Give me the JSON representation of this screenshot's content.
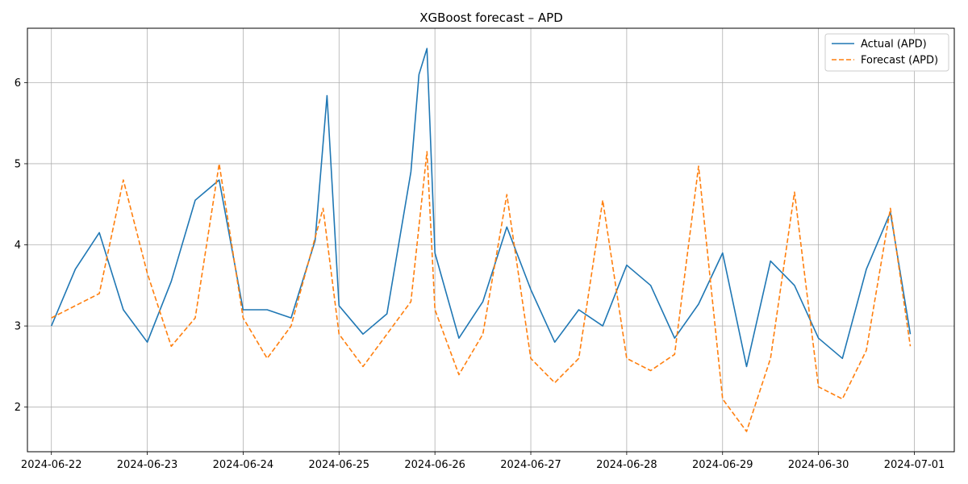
{
  "chart_data": {
    "type": "line",
    "title": "XGBoost forecast – APD",
    "xlabel": "",
    "ylabel": "",
    "x_ticks": [
      "2024-06-22",
      "2024-06-23",
      "2024-06-24",
      "2024-06-25",
      "2024-06-26",
      "2024-06-27",
      "2024-06-28",
      "2024-06-29",
      "2024-06-30",
      "2024-07-01"
    ],
    "y_ticks": [
      "2",
      "3",
      "4",
      "5",
      "6"
    ],
    "xlim": [
      "2024-06-21 18:00",
      "2024-07-01 10:00"
    ],
    "ylim": [
      1.45,
      6.67
    ],
    "grid": true,
    "legend_position": "top-right",
    "series": [
      {
        "name": "Actual (APD)",
        "color": "#1f77b4",
        "style": "solid",
        "x": [
          "2024-06-22 00:00",
          "2024-06-22 06:00",
          "2024-06-22 12:00",
          "2024-06-22 18:00",
          "2024-06-23 00:00",
          "2024-06-23 06:00",
          "2024-06-23 12:00",
          "2024-06-23 18:00",
          "2024-06-24 00:00",
          "2024-06-24 06:00",
          "2024-06-24 12:00",
          "2024-06-24 18:00",
          "2024-06-24 21:00",
          "2024-06-25 00:00",
          "2024-06-25 06:00",
          "2024-06-25 12:00",
          "2024-06-25 18:00",
          "2024-06-25 20:00",
          "2024-06-25 22:00",
          "2024-06-26 00:00",
          "2024-06-26 06:00",
          "2024-06-26 12:00",
          "2024-06-26 18:00",
          "2024-06-27 00:00",
          "2024-06-27 06:00",
          "2024-06-27 12:00",
          "2024-06-27 18:00",
          "2024-06-28 00:00",
          "2024-06-28 06:00",
          "2024-06-28 12:00",
          "2024-06-28 18:00",
          "2024-06-29 00:00",
          "2024-06-29 06:00",
          "2024-06-29 12:00",
          "2024-06-29 18:00",
          "2024-06-30 00:00",
          "2024-06-30 06:00",
          "2024-06-30 12:00",
          "2024-06-30 18:00",
          "2024-06-30 23:00"
        ],
        "values": [
          3.0,
          3.7,
          4.15,
          3.2,
          2.8,
          3.55,
          4.55,
          4.8,
          3.2,
          3.2,
          3.1,
          4.05,
          5.84,
          3.25,
          2.9,
          3.15,
          4.9,
          6.1,
          6.42,
          3.9,
          2.85,
          3.3,
          4.22,
          3.45,
          2.8,
          3.2,
          3.0,
          3.75,
          3.5,
          2.85,
          3.27,
          3.9,
          2.5,
          3.8,
          3.5,
          2.85,
          2.6,
          3.7,
          4.4,
          2.9
        ]
      },
      {
        "name": "Forecast (APD)",
        "color": "#ff7f0e",
        "style": "dashed",
        "x": [
          "2024-06-22 00:00",
          "2024-06-22 06:00",
          "2024-06-22 12:00",
          "2024-06-22 18:00",
          "2024-06-23 00:00",
          "2024-06-23 06:00",
          "2024-06-23 12:00",
          "2024-06-23 18:00",
          "2024-06-24 00:00",
          "2024-06-24 06:00",
          "2024-06-24 12:00",
          "2024-06-24 20:00",
          "2024-06-25 00:00",
          "2024-06-25 06:00",
          "2024-06-25 12:00",
          "2024-06-25 18:00",
          "2024-06-25 22:00",
          "2024-06-26 00:00",
          "2024-06-26 06:00",
          "2024-06-26 12:00",
          "2024-06-26 18:00",
          "2024-06-27 00:00",
          "2024-06-27 06:00",
          "2024-06-27 12:00",
          "2024-06-27 18:00",
          "2024-06-28 00:00",
          "2024-06-28 06:00",
          "2024-06-28 12:00",
          "2024-06-28 18:00",
          "2024-06-29 00:00",
          "2024-06-29 06:00",
          "2024-06-29 12:00",
          "2024-06-29 18:00",
          "2024-06-30 00:00",
          "2024-06-30 06:00",
          "2024-06-30 12:00",
          "2024-06-30 18:00",
          "2024-06-30 23:00"
        ],
        "values": [
          3.1,
          3.25,
          3.4,
          4.8,
          3.65,
          2.75,
          3.1,
          5.0,
          3.1,
          2.6,
          3.0,
          4.45,
          2.9,
          2.5,
          2.9,
          3.3,
          5.15,
          3.2,
          2.4,
          2.9,
          4.62,
          2.6,
          2.3,
          2.6,
          4.55,
          2.6,
          2.45,
          2.65,
          4.97,
          2.1,
          1.7,
          2.6,
          4.65,
          2.25,
          2.1,
          2.7,
          4.45,
          2.75
        ]
      }
    ]
  }
}
